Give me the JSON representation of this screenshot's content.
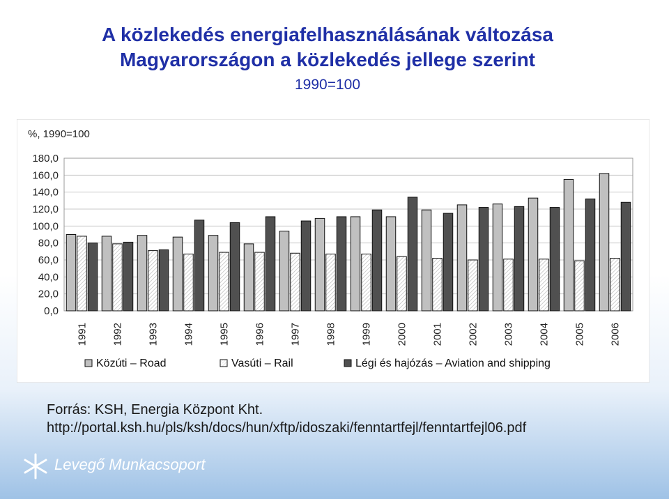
{
  "header": {
    "title_line1": "A közlekedés energiafelhasználásának változása",
    "title_line2": "Magyarországon a közlekedés jellege szerint",
    "title_line3": "1990=100"
  },
  "chart_data": {
    "type": "bar",
    "unit_label": "%, 1990=100",
    "categories": [
      "1991",
      "1992",
      "1993",
      "1994",
      "1995",
      "1996",
      "1997",
      "1998",
      "1999",
      "2000",
      "2001",
      "2002",
      "2003",
      "2004",
      "2005",
      "2006"
    ],
    "series": [
      {
        "name": "Közúti – Road",
        "color": "#c0c0c0",
        "values": [
          90,
          88,
          89,
          87,
          89,
          79,
          94,
          109,
          111,
          111,
          119,
          125,
          126,
          133,
          155,
          162
        ]
      },
      {
        "name": "Vasúti – Rail",
        "color": "#ffffff",
        "values": [
          88,
          79,
          71,
          67,
          69,
          69,
          68,
          67,
          67,
          64,
          62,
          60,
          61,
          61,
          59,
          62
        ]
      },
      {
        "name": "Légi és hajózás – Aviation and shipping",
        "color": "#505050",
        "values": [
          80,
          81,
          72,
          107,
          104,
          111,
          106,
          111,
          119,
          134,
          115,
          122,
          123,
          122,
          132,
          128
        ]
      }
    ],
    "yticks": [
      "180,0",
      "160,0",
      "140,0",
      "120,0",
      "100,0",
      "80,0",
      "60,0",
      "40,0",
      "20,0",
      "0,0"
    ],
    "ylim": [
      0,
      180
    ],
    "grid": true,
    "legend": "bottom"
  },
  "source": {
    "line1": "Forrás: KSH, Energia Központ Kht.",
    "line2": "http://portal.ksh.hu/pls/ksh/docs/hun/xftp/idoszaki/fenntartfejl/fenntartfejl06.pdf"
  },
  "logo": {
    "text": "Levegő Munkacsoport"
  }
}
